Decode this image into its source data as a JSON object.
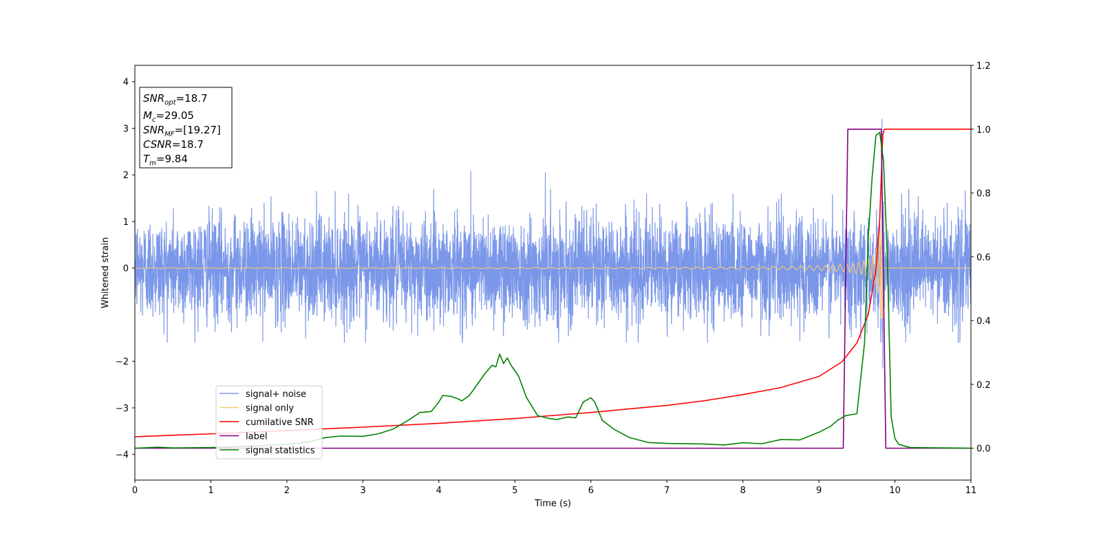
{
  "chart_data": {
    "type": "line",
    "xlabel": "Time (s)",
    "ylabel": "Whitened strain",
    "xlim": [
      0,
      11
    ],
    "ylim_left": [
      -4.55,
      4.35
    ],
    "ylim_right": [
      -0.1,
      1.2
    ],
    "x_ticks": [
      "0",
      "1",
      "2",
      "3",
      "4",
      "5",
      "6",
      "7",
      "8",
      "9",
      "10",
      "11"
    ],
    "y_ticks_left": [
      "4",
      "3",
      "2",
      "1",
      "0",
      "−2",
      "−3",
      "−4"
    ],
    "y_ticks_left_values": [
      4,
      3,
      2,
      1,
      0,
      -2,
      -3,
      -4
    ],
    "y_ticks_right": [
      "1.2",
      "1.0",
      "0.8",
      "0.6",
      "0.4",
      "0.2",
      "0.0"
    ],
    "y_ticks_right_values": [
      1.2,
      1.0,
      0.8,
      0.6,
      0.4,
      0.2,
      0.0
    ],
    "annotation": [
      {
        "base": "SNR",
        "sub": "opt",
        "rest": "=18.7"
      },
      {
        "base": "M",
        "sub": "c",
        "rest": "=29.05"
      },
      {
        "base": "SNR",
        "sub": "MF",
        "rest": "=[19.27]"
      },
      {
        "base": "CSNR",
        "sub": "",
        "rest": "=18.7"
      },
      {
        "base": "T",
        "sub": "m",
        "rest": "=9.84"
      }
    ],
    "legend_position": "lower-left",
    "series": [
      {
        "name": "signal+ noise",
        "color": "#7b97e9",
        "axis": "left",
        "kind": "noise",
        "std": 0.55,
        "x_range": [
          0,
          11
        ],
        "spike_peaks": [
          [
            9.83,
            3.2
          ],
          [
            9.84,
            -2.15
          ],
          [
            4.42,
            2.08
          ],
          [
            5.4,
            2.05
          ]
        ]
      },
      {
        "name": "signal only",
        "color": "#f5c97a",
        "axis": "left",
        "kind": "chirp",
        "tm": 9.84,
        "x_range": [
          0,
          11
        ]
      },
      {
        "name": "cumilative SNR",
        "color": "#ff0000",
        "axis": "right",
        "x": [
          0,
          1,
          2,
          3,
          4,
          5,
          6,
          7,
          7.5,
          8,
          8.5,
          9,
          9.3,
          9.5,
          9.65,
          9.75,
          9.8,
          9.84,
          9.86,
          11
        ],
        "y": [
          0.036,
          0.045,
          0.055,
          0.066,
          0.078,
          0.093,
          0.112,
          0.134,
          0.149,
          0.168,
          0.19,
          0.225,
          0.27,
          0.33,
          0.42,
          0.56,
          0.72,
          0.98,
          1.0,
          1.0
        ]
      },
      {
        "name": "label",
        "color": "#800080",
        "axis": "right",
        "x": [
          0,
          9.32,
          9.38,
          9.82,
          9.88,
          11
        ],
        "y": [
          0,
          0,
          1,
          1,
          0,
          0
        ]
      },
      {
        "name": "signal statistics",
        "color": "#008000",
        "axis": "right",
        "x": [
          0,
          0.3,
          0.5,
          1,
          1.5,
          2,
          2.3,
          2.5,
          2.7,
          3,
          3.2,
          3.4,
          3.6,
          3.75,
          3.9,
          4.0,
          4.05,
          4.15,
          4.25,
          4.3,
          4.4,
          4.5,
          4.6,
          4.7,
          4.75,
          4.8,
          4.85,
          4.9,
          4.95,
          5.05,
          5.15,
          5.3,
          5.45,
          5.55,
          5.7,
          5.8,
          5.9,
          6.0,
          6.05,
          6.15,
          6.3,
          6.5,
          6.75,
          7.0,
          7.5,
          7.75,
          8.0,
          8.25,
          8.5,
          8.75,
          9.0,
          9.15,
          9.25,
          9.35,
          9.5,
          9.6,
          9.65,
          9.7,
          9.75,
          9.8,
          9.85,
          9.9,
          9.95,
          10.0,
          10.05,
          10.2,
          11
        ],
        "y": [
          0,
          0.003,
          0.001,
          0.002,
          0.006,
          0.012,
          0.02,
          0.033,
          0.038,
          0.037,
          0.045,
          0.06,
          0.088,
          0.112,
          0.115,
          0.145,
          0.165,
          0.163,
          0.155,
          0.148,
          0.165,
          0.198,
          0.232,
          0.26,
          0.255,
          0.295,
          0.265,
          0.283,
          0.26,
          0.225,
          0.16,
          0.102,
          0.093,
          0.09,
          0.098,
          0.095,
          0.145,
          0.158,
          0.145,
          0.087,
          0.06,
          0.034,
          0.018,
          0.015,
          0.013,
          0.01,
          0.017,
          0.014,
          0.027,
          0.026,
          0.05,
          0.068,
          0.088,
          0.102,
          0.108,
          0.33,
          0.66,
          0.85,
          0.98,
          0.99,
          0.9,
          0.6,
          0.1,
          0.03,
          0.012,
          0.002,
          0.0
        ]
      }
    ]
  }
}
